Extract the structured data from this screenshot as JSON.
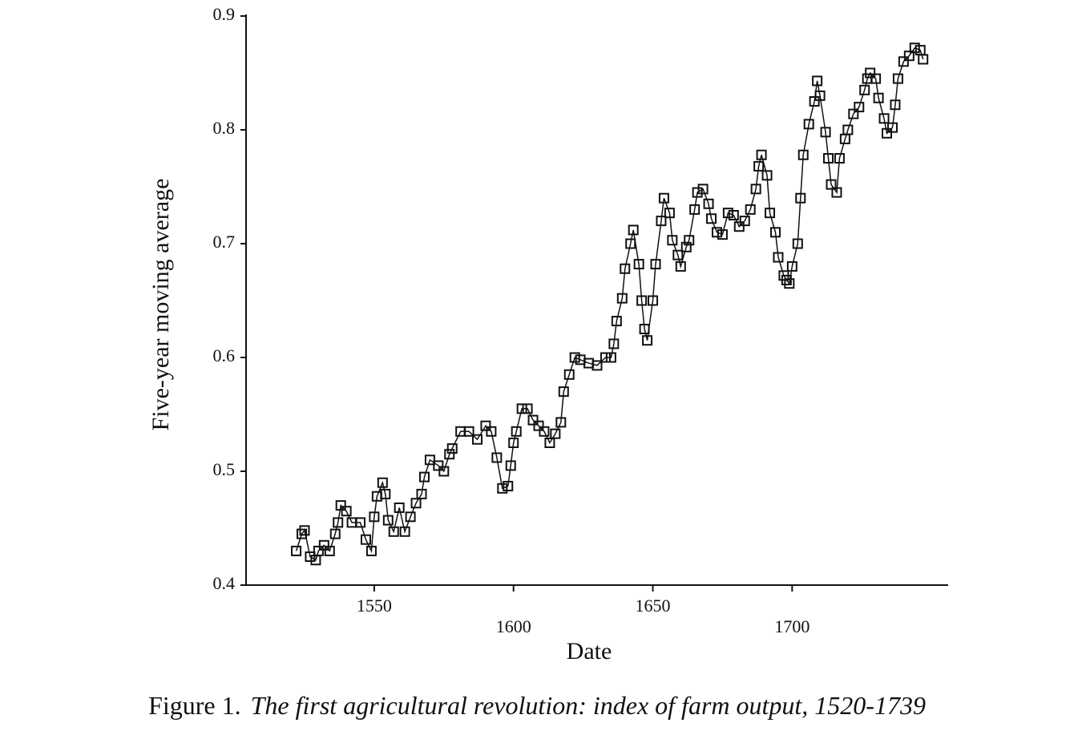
{
  "chart_data": {
    "type": "line",
    "marker": "square",
    "color": "#111111",
    "figure_label": "Figure 1.",
    "caption": "The first agricultural revolution: index of farm output, 1520-1739",
    "xlabel": "Date",
    "ylabel": "Five-year moving average",
    "x": [
      1522,
      1524,
      1525,
      1527,
      1529,
      1530,
      1532,
      1534,
      1536,
      1537,
      1538,
      1540,
      1542,
      1545,
      1547,
      1549,
      1550,
      1551,
      1553,
      1554,
      1555,
      1557,
      1559,
      1561,
      1563,
      1565,
      1567,
      1568,
      1570,
      1573,
      1575,
      1577,
      1578,
      1581,
      1584,
      1587,
      1590,
      1592,
      1594,
      1596,
      1598,
      1599,
      1600,
      1601,
      1603,
      1605,
      1607,
      1609,
      1611,
      1613,
      1615,
      1617,
      1618,
      1620,
      1622,
      1624,
      1627,
      1630,
      1633,
      1635,
      1636,
      1637,
      1639,
      1640,
      1642,
      1643,
      1645,
      1646,
      1647,
      1648,
      1650,
      1651,
      1653,
      1654,
      1656,
      1657,
      1659,
      1660,
      1662,
      1663,
      1665,
      1666,
      1668,
      1670,
      1671,
      1673,
      1675,
      1677,
      1679,
      1681,
      1683,
      1685,
      1687,
      1688,
      1689,
      1691,
      1692,
      1694,
      1695,
      1697,
      1698,
      1699,
      1700,
      1702,
      1703,
      1704,
      1706,
      1708,
      1709,
      1710,
      1712,
      1713,
      1714,
      1716,
      1717,
      1719,
      1720,
      1722,
      1724,
      1726,
      1727,
      1728,
      1730,
      1731,
      1733,
      1734,
      1736,
      1737,
      1738,
      1740,
      1742,
      1744,
      1746,
      1747
    ],
    "values": [
      0.43,
      0.445,
      0.448,
      0.425,
      0.422,
      0.43,
      0.435,
      0.43,
      0.445,
      0.455,
      0.47,
      0.465,
      0.455,
      0.455,
      0.44,
      0.43,
      0.46,
      0.478,
      0.49,
      0.48,
      0.457,
      0.447,
      0.468,
      0.447,
      0.46,
      0.472,
      0.48,
      0.495,
      0.51,
      0.505,
      0.5,
      0.515,
      0.52,
      0.535,
      0.535,
      0.528,
      0.54,
      0.535,
      0.512,
      0.485,
      0.487,
      0.505,
      0.525,
      0.535,
      0.555,
      0.555,
      0.545,
      0.54,
      0.535,
      0.525,
      0.533,
      0.543,
      0.57,
      0.585,
      0.6,
      0.598,
      0.595,
      0.593,
      0.6,
      0.6,
      0.612,
      0.632,
      0.652,
      0.678,
      0.7,
      0.712,
      0.682,
      0.65,
      0.625,
      0.615,
      0.65,
      0.682,
      0.72,
      0.74,
      0.727,
      0.703,
      0.69,
      0.68,
      0.697,
      0.703,
      0.73,
      0.745,
      0.748,
      0.735,
      0.722,
      0.71,
      0.708,
      0.727,
      0.725,
      0.715,
      0.72,
      0.73,
      0.748,
      0.768,
      0.778,
      0.76,
      0.727,
      0.71,
      0.688,
      0.672,
      0.668,
      0.665,
      0.68,
      0.7,
      0.74,
      0.778,
      0.805,
      0.825,
      0.843,
      0.83,
      0.798,
      0.775,
      0.752,
      0.745,
      0.775,
      0.792,
      0.8,
      0.814,
      0.82,
      0.835,
      0.845,
      0.85,
      0.845,
      0.828,
      0.81,
      0.797,
      0.802,
      0.822,
      0.845,
      0.86,
      0.865,
      0.872,
      0.87,
      0.862
    ],
    "xlim": [
      1504,
      1756
    ],
    "xticks": [
      1550,
      1600,
      1650,
      1700
    ],
    "ylim": [
      0.4,
      0.9
    ],
    "yticks": [
      0.4,
      0.5,
      0.6,
      0.7,
      0.8,
      0.9
    ]
  }
}
